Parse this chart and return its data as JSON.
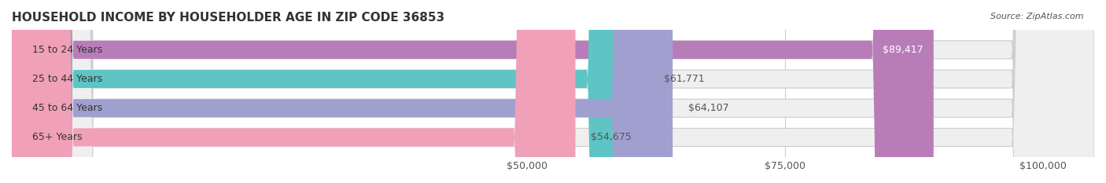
{
  "title": "HOUSEHOLD INCOME BY HOUSEHOLDER AGE IN ZIP CODE 36853",
  "source": "Source: ZipAtlas.com",
  "categories": [
    "15 to 24 Years",
    "25 to 44 Years",
    "45 to 64 Years",
    "65+ Years"
  ],
  "values": [
    89417,
    61771,
    64107,
    54675
  ],
  "bar_colors": [
    "#b87db8",
    "#5ec4c4",
    "#a0a0d0",
    "#f0a0b8"
  ],
  "bar_bg_color": "#f0f0f0",
  "label_colors": [
    "#ffffff",
    "#555555",
    "#555555",
    "#555555"
  ],
  "x_ticks": [
    50000,
    75000,
    100000
  ],
  "x_tick_labels": [
    "$50,000",
    "$75,000",
    "$100,000"
  ],
  "xlim_min": 0,
  "xlim_max": 105000,
  "value_labels": [
    "$89,417",
    "$61,771",
    "$64,107",
    "$54,675"
  ],
  "title_fontsize": 11,
  "source_fontsize": 8,
  "label_fontsize": 9,
  "tick_fontsize": 9,
  "background_color": "#ffffff",
  "bar_background_color": "#efefef",
  "grid_color": "#cccccc"
}
